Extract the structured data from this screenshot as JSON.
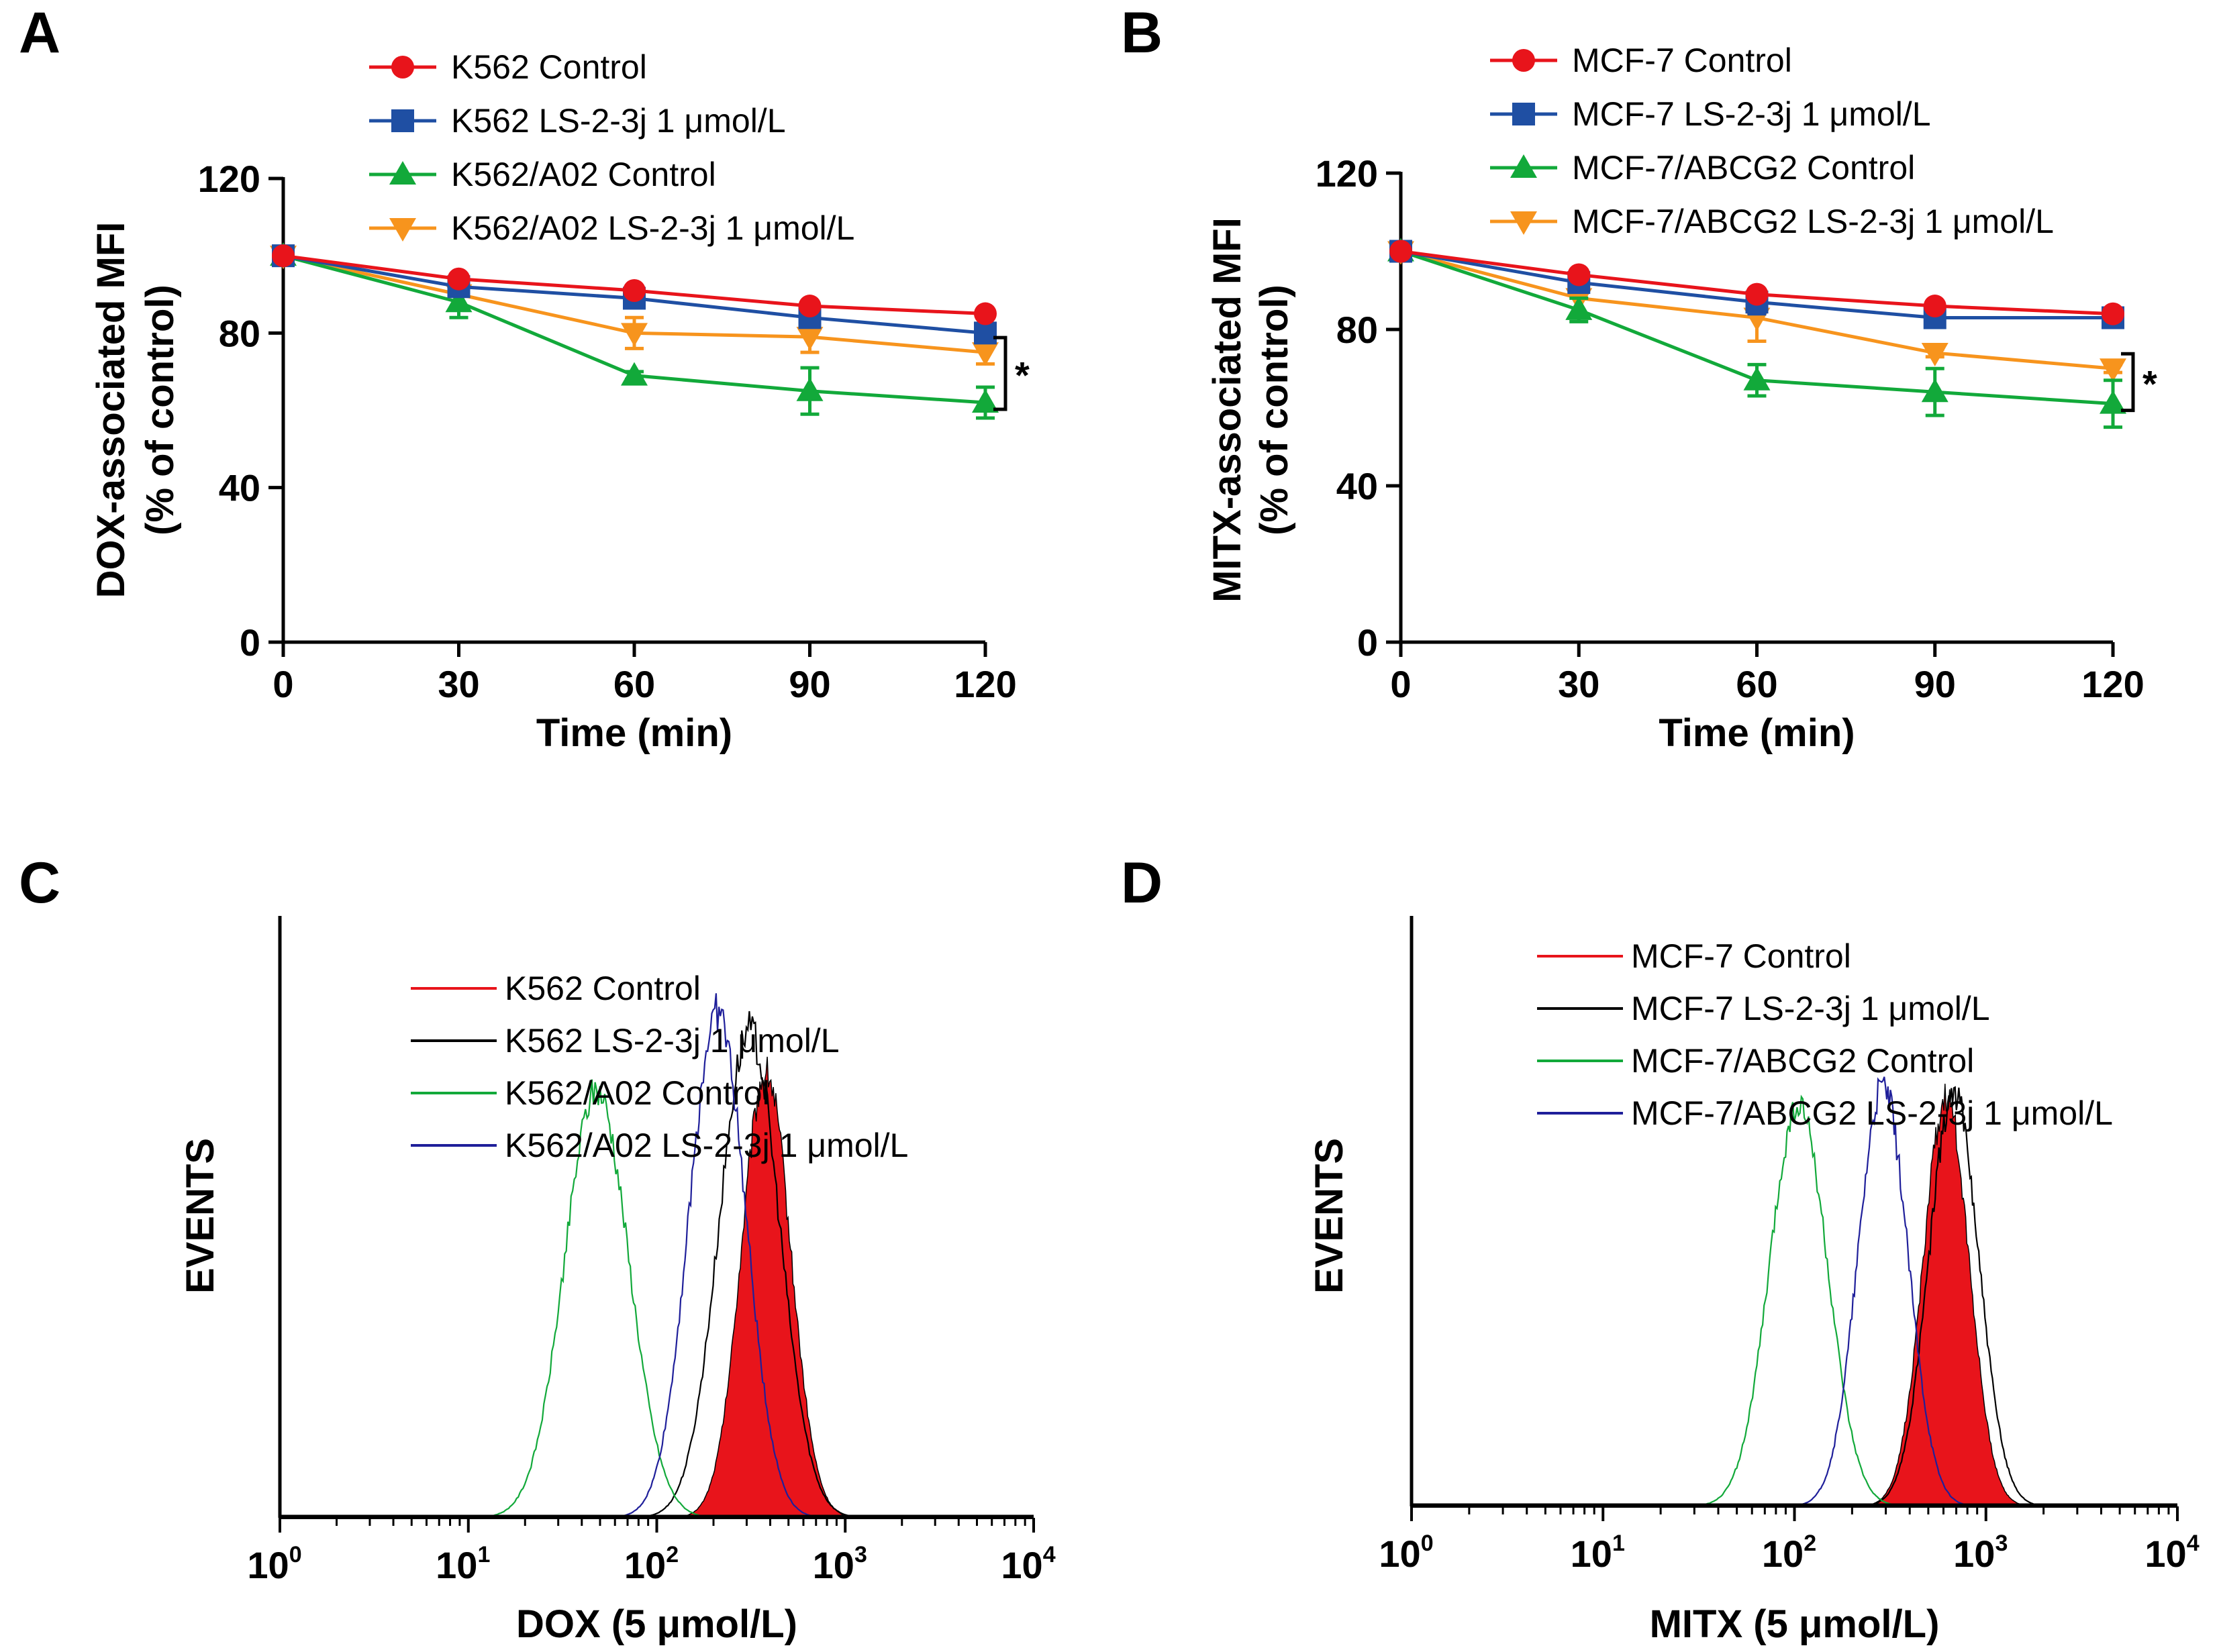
{
  "chart_data": [
    {
      "id": "A",
      "panel_label": "A",
      "type": "line",
      "xlabel": "Time (min)",
      "ylabel": "DOX-associated MFI",
      "ylabel2": "(% of control)",
      "x": [
        0,
        30,
        60,
        90,
        120
      ],
      "xticks": [
        "0",
        "30",
        "60",
        "90",
        "120"
      ],
      "yticks": [
        "0",
        "40",
        "80",
        "120"
      ],
      "xlim": [
        0,
        120
      ],
      "ylim": [
        0,
        120
      ],
      "annotation": "*",
      "series": [
        {
          "name": "K562 Control",
          "color": "#e8141b",
          "marker": "circle",
          "values": [
            100,
            94,
            91,
            87,
            85
          ],
          "errors": [
            0,
            1,
            1,
            1,
            1
          ]
        },
        {
          "name": "K562 LS-2-3j 1 μmol/L",
          "color": "#1f4fa3",
          "marker": "square",
          "values": [
            100,
            92,
            89,
            84,
            80
          ],
          "errors": [
            0,
            1,
            2,
            2,
            2
          ]
        },
        {
          "name": "K562/A02 Control",
          "color": "#12a93a",
          "marker": "triangle-up",
          "values": [
            100,
            88,
            69,
            65,
            62
          ],
          "errors": [
            0,
            4,
            1,
            6,
            4
          ]
        },
        {
          "name": "K562/A02 LS-2-3j 1 μmol/L",
          "color": "#f7941d",
          "marker": "triangle-down",
          "values": [
            100,
            90,
            80,
            79,
            75
          ],
          "errors": [
            0,
            4,
            4,
            4,
            3
          ]
        }
      ]
    },
    {
      "id": "B",
      "panel_label": "B",
      "type": "line",
      "xlabel": "Time (min)",
      "ylabel": "MITX-associated MFI",
      "ylabel2": "(% of control)",
      "x": [
        0,
        30,
        60,
        90,
        120
      ],
      "xticks": [
        "0",
        "30",
        "60",
        "90",
        "120"
      ],
      "yticks": [
        "0",
        "40",
        "80",
        "120"
      ],
      "xlim": [
        0,
        120
      ],
      "ylim": [
        0,
        120
      ],
      "annotation": "*",
      "series": [
        {
          "name": "MCF-7 Control",
          "color": "#e8141b",
          "marker": "circle",
          "values": [
            100,
            94,
            89,
            86,
            84
          ],
          "errors": [
            0,
            1,
            1,
            1,
            1
          ]
        },
        {
          "name": "MCF-7 LS-2-3j 1 μmol/L",
          "color": "#1f4fa3",
          "marker": "square",
          "values": [
            100,
            92,
            87,
            83,
            83
          ],
          "errors": [
            0,
            2,
            3,
            1,
            1
          ]
        },
        {
          "name": "MCF-7/ABCG2 Control",
          "color": "#12a93a",
          "marker": "triangle-up",
          "values": [
            100,
            85,
            67,
            64,
            61
          ],
          "errors": [
            0,
            3,
            4,
            6,
            6
          ]
        },
        {
          "name": "MCF-7/ABCG2 LS-2-3j 1 μmol/L",
          "color": "#f7941d",
          "marker": "triangle-down",
          "values": [
            100,
            88,
            83,
            74,
            70
          ],
          "errors": [
            0,
            5,
            6,
            1,
            1
          ]
        }
      ]
    },
    {
      "id": "C",
      "panel_label": "C",
      "type": "area",
      "xlabel": "DOX (5 μmol/L)",
      "ylabel": "EVENTS",
      "xscale": "log",
      "xlim": [
        1,
        10000
      ],
      "xticks": [
        {
          "base": "10",
          "exp": "0"
        },
        {
          "base": "10",
          "exp": "1"
        },
        {
          "base": "10",
          "exp": "2"
        },
        {
          "base": "10",
          "exp": "3"
        },
        {
          "base": "10",
          "exp": "4"
        }
      ],
      "series": [
        {
          "name": "K562 Control",
          "color": "#e8141b",
          "filled": true,
          "peak": 380,
          "width": 0.13,
          "height": 0.74
        },
        {
          "name": "K562 LS-2-3j 1 μmol/L",
          "color": "#000000",
          "filled": false,
          "peak": 310,
          "width": 0.16,
          "height": 0.81
        },
        {
          "name": "K562/A02 Control",
          "color": "#12a93a",
          "filled": false,
          "peak": 48,
          "width": 0.17,
          "height": 0.71
        },
        {
          "name": "K562/A02 LS-2-3j 1 μmol/L",
          "color": "#1f1f9a",
          "filled": false,
          "peak": 210,
          "width": 0.15,
          "height": 0.84
        }
      ]
    },
    {
      "id": "D",
      "panel_label": "D",
      "type": "area",
      "xlabel": "MITX (5 μmol/L)",
      "ylabel": "EVENTS",
      "xscale": "log",
      "xlim": [
        1,
        10000
      ],
      "xticks": [
        {
          "base": "10",
          "exp": "0"
        },
        {
          "base": "10",
          "exp": "1"
        },
        {
          "base": "10",
          "exp": "2"
        },
        {
          "base": "10",
          "exp": "3"
        },
        {
          "base": "10",
          "exp": "4"
        }
      ],
      "series": [
        {
          "name": "MCF-7 Control",
          "color": "#e8141b",
          "filled": true,
          "peak": 620,
          "width": 0.12,
          "height": 0.69
        },
        {
          "name": "MCF-7  LS-2-3j 1 μmol/L",
          "color": "#000000",
          "filled": false,
          "peak": 680,
          "width": 0.13,
          "height": 0.7
        },
        {
          "name": "MCF-7/ABCG2 Control",
          "color": "#12a93a",
          "filled": false,
          "peak": 105,
          "width": 0.15,
          "height": 0.68
        },
        {
          "name": "MCF-7/ABCG2 LS-2-3j 1 μmol/L",
          "color": "#1f1f9a",
          "filled": false,
          "peak": 290,
          "width": 0.13,
          "height": 0.71
        }
      ]
    }
  ]
}
